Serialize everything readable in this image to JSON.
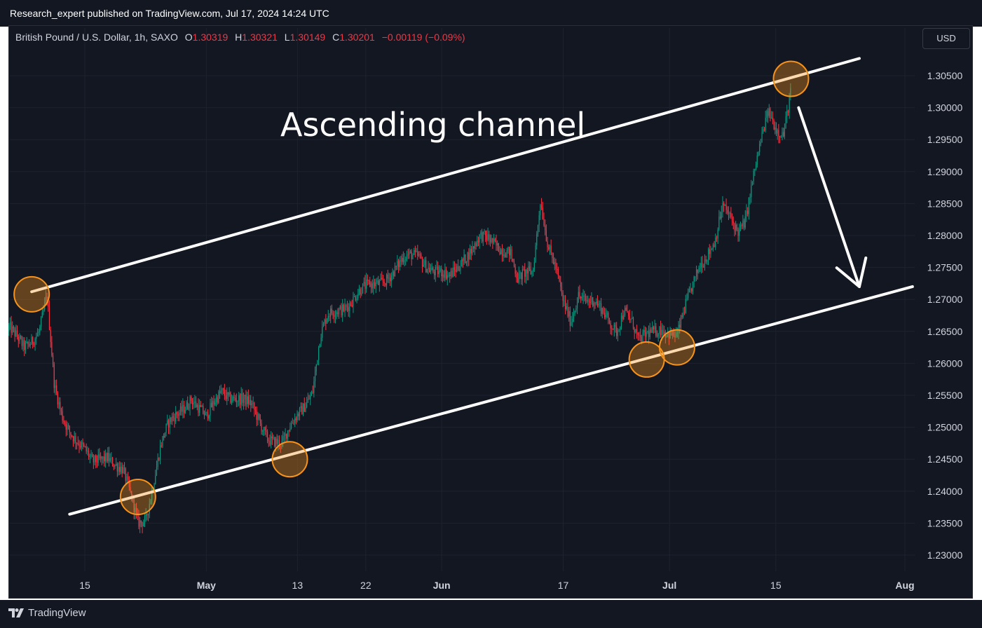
{
  "publish_info": "Research_expert published on TradingView.com, Jul 17, 2024 14:24 UTC",
  "legend": {
    "symbol": "British Pound / U.S. Dollar, 1h, SAXO",
    "open_label": "O",
    "open": "1.30319",
    "high_label": "H",
    "high": "1.30321",
    "low_label": "L",
    "low": "1.30149",
    "close_label": "C",
    "close": "1.30201",
    "change": "−0.00119 (−0.09%)"
  },
  "currency_button": "USD",
  "brand": "TradingView",
  "chart_data": {
    "type": "candlestick",
    "x_axis_labels": [
      "15",
      "May",
      "13",
      "22",
      "Jun",
      "17",
      "Jul",
      "15",
      "Aug"
    ],
    "y_axis_labels": [
      "1.30500",
      "1.30000",
      "1.29500",
      "1.29000",
      "1.28500",
      "1.28000",
      "1.27500",
      "1.27000",
      "1.26500",
      "1.26000",
      "1.25500",
      "1.25000",
      "1.24500",
      "1.24000",
      "1.23500",
      "1.23000"
    ],
    "ylim": [
      1.2285,
      1.3135
    ],
    "price_path": [
      [
        "2024-04-05",
        1.265
      ],
      [
        "2024-04-07",
        1.263
      ],
      [
        "2024-04-09",
        1.265
      ],
      [
        "2024-04-10",
        1.27
      ],
      [
        "2024-04-11",
        1.256
      ],
      [
        "2024-04-12",
        1.252
      ],
      [
        "2024-04-14",
        1.248
      ],
      [
        "2024-04-16",
        1.244
      ],
      [
        "2024-04-18",
        1.246
      ],
      [
        "2024-04-20",
        1.243
      ],
      [
        "2024-04-22",
        1.235
      ],
      [
        "2024-04-23",
        1.236
      ],
      [
        "2024-04-25",
        1.247
      ],
      [
        "2024-04-26",
        1.25
      ],
      [
        "2024-04-29",
        1.255
      ],
      [
        "2024-05-01",
        1.251
      ],
      [
        "2024-05-03",
        1.256
      ],
      [
        "2024-05-05",
        1.2545
      ],
      [
        "2024-05-07",
        1.253
      ],
      [
        "2024-05-09",
        1.249
      ],
      [
        "2024-05-11",
        1.247
      ],
      [
        "2024-05-13",
        1.252
      ],
      [
        "2024-05-15",
        1.256
      ],
      [
        "2024-05-16",
        1.264
      ],
      [
        "2024-05-17",
        1.267
      ],
      [
        "2024-05-19",
        1.269
      ],
      [
        "2024-05-21",
        1.271
      ],
      [
        "2024-05-23",
        1.272
      ],
      [
        "2024-05-25",
        1.274
      ],
      [
        "2024-05-27",
        1.276
      ],
      [
        "2024-05-29",
        1.277
      ],
      [
        "2024-05-31",
        1.2745
      ],
      [
        "2024-06-02",
        1.273
      ],
      [
        "2024-06-04",
        1.277
      ],
      [
        "2024-06-06",
        1.2795
      ],
      [
        "2024-06-08",
        1.2785
      ],
      [
        "2024-06-10",
        1.278
      ],
      [
        "2024-06-11",
        1.273
      ],
      [
        "2024-06-13",
        1.274
      ],
      [
        "2024-06-14",
        1.286
      ],
      [
        "2024-06-15",
        1.279
      ],
      [
        "2024-06-16",
        1.275
      ],
      [
        "2024-06-17",
        1.269
      ],
      [
        "2024-06-18",
        1.266
      ],
      [
        "2024-06-19",
        1.271
      ],
      [
        "2024-06-21",
        1.27
      ],
      [
        "2024-06-23",
        1.266
      ],
      [
        "2024-06-24",
        1.265
      ],
      [
        "2024-06-25",
        1.269
      ],
      [
        "2024-06-26",
        1.267
      ],
      [
        "2024-06-27",
        1.263
      ],
      [
        "2024-06-28",
        1.264
      ],
      [
        "2024-06-30",
        1.266
      ],
      [
        "2024-07-02",
        1.264
      ],
      [
        "2024-07-03",
        1.268
      ],
      [
        "2024-07-04",
        1.272
      ],
      [
        "2024-07-05",
        1.276
      ],
      [
        "2024-07-07",
        1.279
      ],
      [
        "2024-07-08",
        1.284
      ],
      [
        "2024-07-10",
        1.281
      ],
      [
        "2024-07-11",
        1.283
      ],
      [
        "2024-07-12",
        1.289
      ],
      [
        "2024-07-13",
        1.294
      ],
      [
        "2024-07-14",
        1.299
      ],
      [
        "2024-07-15",
        1.297
      ],
      [
        "2024-07-16",
        1.2965
      ],
      [
        "2024-07-17",
        1.303
      ]
    ],
    "series_colors": {
      "up": "#089981",
      "down": "#f23645"
    },
    "annotations": {
      "label": "Ascending channel",
      "upper_line": [
        [
          "2024-04-08",
          1.2712
        ],
        [
          "2024-07-26",
          1.3077
        ]
      ],
      "lower_line": [
        [
          "2024-04-13",
          1.2364
        ],
        [
          "2024-08-02",
          1.272
        ]
      ],
      "touch_points": [
        [
          "2024-04-08",
          1.2708
        ],
        [
          "2024-04-22",
          1.2391
        ],
        [
          "2024-05-12",
          1.245
        ],
        [
          "2024-06-28",
          1.2606
        ],
        [
          "2024-07-02",
          1.2625
        ],
        [
          "2024-07-17",
          1.3045
        ]
      ],
      "arrow": [
        [
          "2024-07-18",
          1.3
        ],
        [
          "2024-07-26",
          1.272
        ]
      ],
      "circle_color": "#f7931a",
      "line_color": "#ffffff"
    },
    "background": "#131722",
    "grid": true,
    "price_axis": "right"
  }
}
